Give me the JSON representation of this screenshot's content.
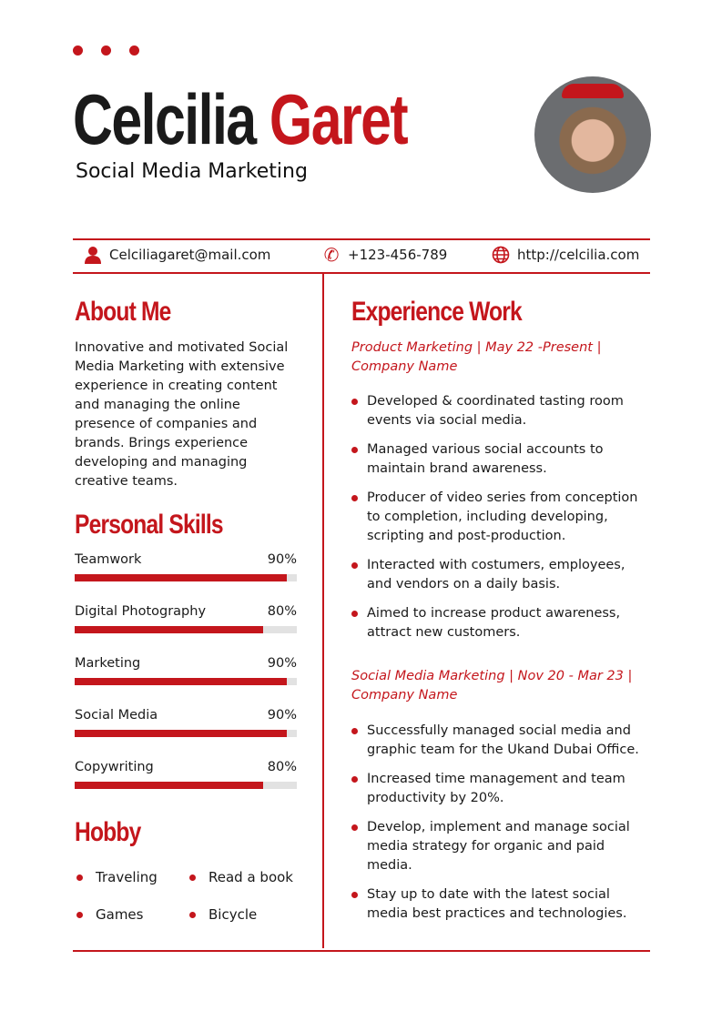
{
  "header": {
    "first_name": "Celcilia",
    "last_name": "Garet",
    "title": "Social Media Marketing"
  },
  "contact": {
    "email": "Celciliagaret@mail.com",
    "phone": "+123-456-789",
    "website": "http://celcilia.com"
  },
  "about": {
    "heading": "About Me",
    "text": "Innovative and motivated Social Media Marketing with extensive experience in creating content and managing the online presence of companies and brands. Brings experience developing and managing creative teams."
  },
  "skills": {
    "heading": "Personal Skills",
    "items": [
      {
        "label": "Teamwork",
        "percent": "90%",
        "value": 90
      },
      {
        "label": "Digital Photography",
        "percent": "80%",
        "value": 80
      },
      {
        "label": "Marketing",
        "percent": "90%",
        "value": 90
      },
      {
        "label": "Social Media",
        "percent": "90%",
        "value": 90
      },
      {
        "label": "Copywriting",
        "percent": "80%",
        "value": 80
      }
    ]
  },
  "hobby": {
    "heading": "Hobby",
    "items": [
      "Traveling",
      "Read a book",
      "Games",
      "Bicycle"
    ]
  },
  "experience": {
    "heading": "Experience Work",
    "jobs": [
      {
        "title": "Product Marketing | May 22 -Present | Company Name",
        "bullets": [
          "Developed & coordinated tasting room events via social media.",
          "Managed various social accounts to maintain brand awareness.",
          "Producer of video series from conception to completion, including developing, scripting and post-production.",
          "Interacted with costumers, employees, and vendors on a daily basis.",
          "Aimed to increase product awareness, attract new customers."
        ]
      },
      {
        "title": "Social Media Marketing | Nov 20 - Mar 23 | Company Name",
        "bullets": [
          "Successfully managed social media and graphic team for the Ukand Dubai Office.",
          "Increased time management and team productivity by 20%.",
          "Develop, implement and manage social media strategy for organic and paid media.",
          "Stay up to date with the latest social media best practices and technologies."
        ]
      }
    ]
  },
  "colors": {
    "accent": "#c4161c"
  }
}
